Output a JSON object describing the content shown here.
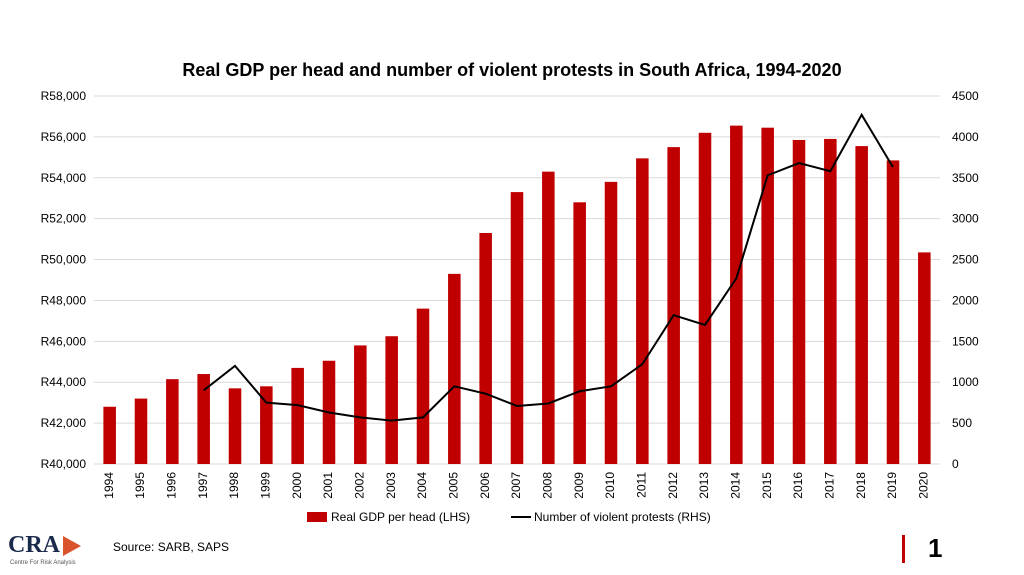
{
  "source": "Source: SARB, SAPS",
  "logo_text": "CRA",
  "logo_sub": "Centre For Risk Analysis",
  "page_number": "1",
  "colors": {
    "bar": "#c00000",
    "line": "#000000",
    "grid": "#d9d9d9"
  },
  "chart_data": {
    "type": "bar",
    "title": "Real GDP per head and number of violent protests in South Africa, 1994-2020",
    "categories": [
      "1994",
      "1995",
      "1996",
      "1997",
      "1998",
      "1999",
      "2000",
      "2001",
      "2002",
      "2003",
      "2004",
      "2005",
      "2006",
      "2007",
      "2008",
      "2009",
      "2010",
      "2011",
      "2012",
      "2013",
      "2014",
      "2015",
      "2016",
      "2017",
      "2018",
      "2019",
      "2020"
    ],
    "y_left": {
      "min": 40000,
      "max": 58000,
      "ticks": [
        "R40,000",
        "R42,000",
        "R44,000",
        "R46,000",
        "R48,000",
        "R50,000",
        "R52,000",
        "R54,000",
        "R56,000",
        "R58,000"
      ]
    },
    "y_right": {
      "min": 0,
      "max": 4500,
      "ticks": [
        "0",
        "500",
        "1000",
        "1500",
        "2000",
        "2500",
        "3000",
        "3500",
        "4000",
        "4500"
      ]
    },
    "series": [
      {
        "name": "Real GDP per head (LHS)",
        "type": "bar",
        "axis": "left",
        "values": [
          42800,
          43200,
          44150,
          44400,
          43700,
          43800,
          44700,
          45050,
          45800,
          46250,
          47600,
          49300,
          51300,
          53300,
          54300,
          52800,
          53800,
          54950,
          55500,
          56200,
          56550,
          56450,
          55850,
          55900,
          55550,
          54850,
          50350
        ]
      },
      {
        "name": "Number of violent protests (RHS)",
        "type": "line",
        "axis": "right",
        "values": [
          null,
          null,
          null,
          900,
          1200,
          750,
          720,
          630,
          570,
          530,
          570,
          950,
          860,
          710,
          740,
          890,
          950,
          1220,
          1820,
          1700,
          2270,
          3530,
          3680,
          3580,
          4270,
          3630,
          null
        ]
      }
    ],
    "legend_position": "bottom",
    "grid": true
  }
}
